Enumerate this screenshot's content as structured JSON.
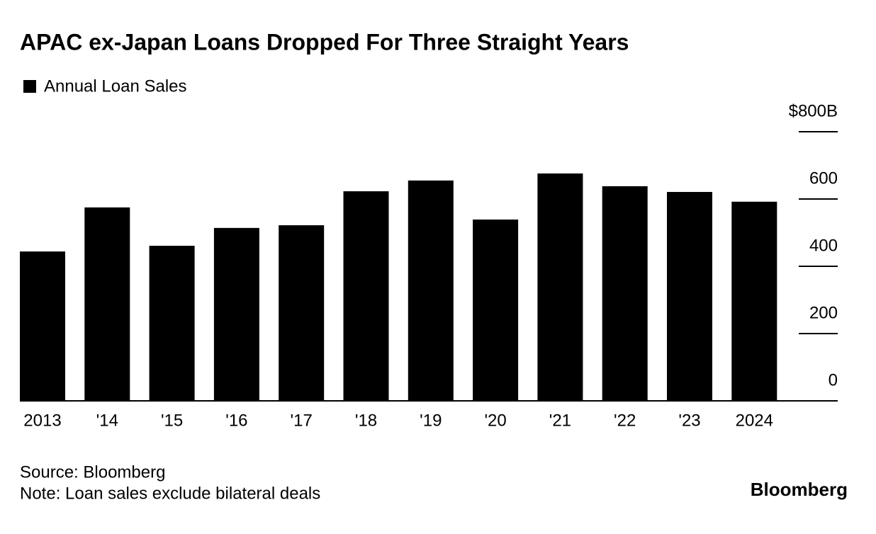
{
  "chart_data": {
    "type": "bar",
    "title": "APAC ex-Japan Loans Dropped For Three Straight Years",
    "categories": [
      "2013",
      "'14",
      "'15",
      "'16",
      "'17",
      "'18",
      "'19",
      "'20",
      "'21",
      "'22",
      "'23",
      "2024"
    ],
    "series": [
      {
        "name": "Annual Loan Sales",
        "color": "#000000",
        "values": [
          444,
          575,
          461,
          514,
          522,
          623,
          655,
          539,
          676,
          638,
          621,
          592
        ]
      }
    ],
    "ylim": [
      0,
      800
    ],
    "yticks": [
      0,
      200,
      400,
      600,
      {
        "value": 800,
        "label": "$800B"
      }
    ],
    "source": "Source: Bloomberg",
    "note": "Note: Loan sales exclude bilateral deals",
    "brand": "Bloomberg"
  }
}
